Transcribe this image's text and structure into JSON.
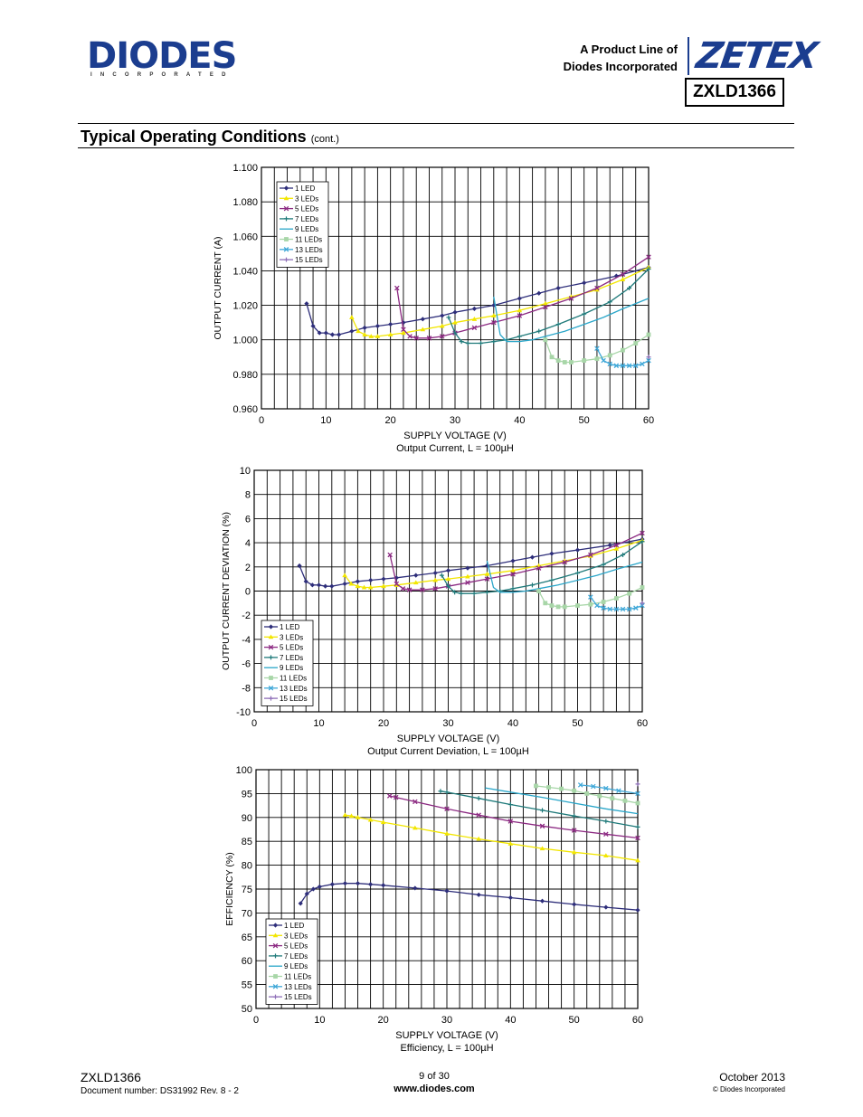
{
  "header": {
    "logo_text": "DIODES",
    "logo_subtext": "INCORPORATED",
    "product_line_1": "A Product Line of",
    "product_line_2": "Diodes Incorporated",
    "brand": "ZETEX",
    "part_number": "ZXLD1366",
    "brand_color": "#1b3d8f"
  },
  "section": {
    "title": "Typical Operating Conditions",
    "suffix": "(cont.)"
  },
  "series_colors": [
    "#2e2e7a",
    "#f2e600",
    "#8c2a82",
    "#1f7a7a",
    "#2aa6c9",
    "#a8d6a8",
    "#40a8d8",
    "#8e6fb8"
  ],
  "chart_data": [
    {
      "type": "line",
      "ylabel": "OUTPUT CURRENT (A)",
      "xlabel": "SUPPLY VOLTAGE (V)",
      "caption": "Output Current, L = 100µH",
      "xlim": [
        0,
        60
      ],
      "ylim": [
        0.96,
        1.1
      ],
      "xticks": [
        "0",
        "10",
        "20",
        "30",
        "40",
        "50",
        "60"
      ],
      "yticks": [
        "0.960",
        "0.980",
        "1.000",
        "1.020",
        "1.040",
        "1.060",
        "1.080",
        "1.100"
      ],
      "grid": "vertical every 2 V, horizontal at labeled ticks",
      "legend_position": "top-left",
      "series": [
        {
          "name": "1 LED",
          "x": [
            7,
            8,
            9,
            10,
            11,
            12,
            14,
            16,
            18,
            20,
            22,
            25,
            28,
            30,
            33,
            36,
            40,
            43,
            46,
            50,
            55,
            60
          ],
          "y": [
            1.021,
            1.008,
            1.004,
            1.004,
            1.003,
            1.003,
            1.005,
            1.007,
            1.008,
            1.009,
            1.01,
            1.012,
            1.014,
            1.016,
            1.018,
            1.02,
            1.024,
            1.027,
            1.03,
            1.033,
            1.037,
            1.042
          ]
        },
        {
          "name": "3 LEDs",
          "x": [
            14,
            15,
            16,
            17,
            18,
            20,
            22,
            25,
            28,
            30,
            33,
            36,
            40,
            44,
            48,
            52,
            56,
            60
          ],
          "y": [
            1.013,
            1.005,
            1.003,
            1.002,
            1.002,
            1.003,
            1.004,
            1.006,
            1.008,
            1.01,
            1.012,
            1.014,
            1.017,
            1.021,
            1.025,
            1.029,
            1.035,
            1.042
          ]
        },
        {
          "name": "5 LEDs",
          "x": [
            21,
            22,
            23,
            24,
            26,
            28,
            30,
            33,
            36,
            40,
            44,
            48,
            52,
            56,
            60
          ],
          "y": [
            1.03,
            1.006,
            1.002,
            1.001,
            1.001,
            1.002,
            1.004,
            1.007,
            1.01,
            1.014,
            1.019,
            1.024,
            1.03,
            1.038,
            1.048
          ]
        },
        {
          "name": "7 LEDs",
          "x": [
            29,
            30,
            31,
            32,
            34,
            36,
            38,
            40,
            43,
            46,
            50,
            54,
            57,
            60
          ],
          "y": [
            1.013,
            1.004,
            0.999,
            0.998,
            0.998,
            0.999,
            1.0,
            1.002,
            1.005,
            1.009,
            1.015,
            1.022,
            1.03,
            1.041
          ]
        },
        {
          "name": "9 LEDs",
          "x": [
            36,
            37,
            38,
            39,
            40,
            42,
            44,
            47,
            50,
            53,
            56,
            60
          ],
          "y": [
            1.025,
            1.003,
            0.999,
            0.999,
            0.999,
            1.0,
            1.002,
            1.005,
            1.009,
            1.013,
            1.018,
            1.024
          ]
        },
        {
          "name": "11 LEDs",
          "x": [
            44,
            45,
            46,
            47,
            48,
            50,
            52,
            54,
            56,
            58,
            60
          ],
          "y": [
            1.0,
            0.99,
            0.988,
            0.987,
            0.987,
            0.988,
            0.989,
            0.991,
            0.994,
            0.998,
            1.003
          ]
        },
        {
          "name": "13 LEDs",
          "x": [
            52,
            53,
            54,
            55,
            56,
            57,
            58,
            59,
            60
          ],
          "y": [
            0.995,
            0.988,
            0.986,
            0.985,
            0.985,
            0.985,
            0.985,
            0.986,
            0.988
          ]
        },
        {
          "name": "15 LEDs",
          "x": [
            60
          ],
          "y": [
            0.99
          ]
        }
      ]
    },
    {
      "type": "line",
      "ylabel": "OUTPUT CURRENT DEVIATION (%)",
      "xlabel": "SUPPLY VOLTAGE (V)",
      "caption": "Output Current Deviation, L = 100µH",
      "xlim": [
        0,
        60
      ],
      "ylim": [
        -10,
        10
      ],
      "xticks": [
        "0",
        "10",
        "20",
        "30",
        "40",
        "50",
        "60"
      ],
      "yticks": [
        "-10",
        "-8",
        "-6",
        "-4",
        "-2",
        "0",
        "2",
        "4",
        "6",
        "8",
        "10"
      ],
      "grid": "vertical every 2 V, horizontal at labeled ticks",
      "legend_position": "bottom-left",
      "series": [
        {
          "name": "1 LED",
          "x": [
            7,
            8,
            9,
            10,
            11,
            12,
            14,
            16,
            18,
            20,
            22,
            25,
            28,
            30,
            33,
            36,
            40,
            43,
            46,
            50,
            55,
            60
          ],
          "y": [
            2.1,
            0.8,
            0.5,
            0.5,
            0.4,
            0.4,
            0.6,
            0.8,
            0.9,
            1.0,
            1.1,
            1.3,
            1.5,
            1.7,
            1.9,
            2.1,
            2.5,
            2.8,
            3.1,
            3.4,
            3.8,
            4.3
          ]
        },
        {
          "name": "3 LEDs",
          "x": [
            14,
            15,
            16,
            17,
            18,
            20,
            22,
            25,
            28,
            30,
            33,
            36,
            40,
            44,
            48,
            52,
            56,
            60
          ],
          "y": [
            1.3,
            0.6,
            0.4,
            0.3,
            0.3,
            0.4,
            0.5,
            0.7,
            0.9,
            1.0,
            1.2,
            1.4,
            1.7,
            2.1,
            2.5,
            2.9,
            3.5,
            4.2
          ]
        },
        {
          "name": "5 LEDs",
          "x": [
            21,
            22,
            23,
            24,
            26,
            28,
            30,
            33,
            36,
            40,
            44,
            48,
            52,
            56,
            60
          ],
          "y": [
            3.0,
            0.6,
            0.2,
            0.1,
            0.1,
            0.2,
            0.4,
            0.7,
            1.0,
            1.4,
            1.9,
            2.4,
            3.0,
            3.8,
            4.8
          ]
        },
        {
          "name": "7 LEDs",
          "x": [
            29,
            30,
            31,
            32,
            34,
            36,
            38,
            40,
            43,
            46,
            50,
            54,
            57,
            60
          ],
          "y": [
            1.3,
            0.4,
            -0.1,
            -0.2,
            -0.2,
            -0.1,
            0.0,
            0.2,
            0.5,
            0.9,
            1.5,
            2.2,
            3.0,
            4.1
          ]
        },
        {
          "name": "9 LEDs",
          "x": [
            36,
            37,
            38,
            39,
            40,
            42,
            44,
            47,
            50,
            53,
            56,
            60
          ],
          "y": [
            2.5,
            0.3,
            -0.1,
            -0.1,
            -0.1,
            0.0,
            0.2,
            0.5,
            0.9,
            1.3,
            1.8,
            2.4
          ]
        },
        {
          "name": "11 LEDs",
          "x": [
            44,
            45,
            46,
            47,
            48,
            50,
            52,
            54,
            56,
            58,
            60
          ],
          "y": [
            0.0,
            -1.0,
            -1.2,
            -1.3,
            -1.3,
            -1.2,
            -1.1,
            -0.9,
            -0.6,
            -0.2,
            0.3
          ]
        },
        {
          "name": "13 LEDs",
          "x": [
            52,
            53,
            54,
            55,
            56,
            57,
            58,
            59,
            60
          ],
          "y": [
            -0.5,
            -1.2,
            -1.4,
            -1.5,
            -1.5,
            -1.5,
            -1.5,
            -1.4,
            -1.2
          ]
        },
        {
          "name": "15 LEDs",
          "x": [
            60
          ],
          "y": [
            -1.0
          ]
        }
      ]
    },
    {
      "type": "line",
      "ylabel": "EFFICIENCY (%)",
      "xlabel": "SUPPLY VOLTAGE (V)",
      "caption": "Efficiency, L = 100µH",
      "xlim": [
        0,
        60
      ],
      "ylim": [
        50,
        100
      ],
      "xticks": [
        "0",
        "10",
        "20",
        "30",
        "40",
        "50",
        "60"
      ],
      "yticks": [
        "50",
        "55",
        "60",
        "65",
        "70",
        "75",
        "80",
        "85",
        "90",
        "95",
        "100"
      ],
      "grid": "vertical every 2 V, horizontal at labeled ticks",
      "legend_position": "bottom-left",
      "series": [
        {
          "name": "1 LED",
          "x": [
            7,
            8,
            9,
            10,
            12,
            14,
            16,
            18,
            20,
            25,
            30,
            35,
            40,
            45,
            50,
            55,
            60
          ],
          "y": [
            72,
            74,
            75,
            75.5,
            76,
            76.2,
            76.2,
            76,
            75.8,
            75.2,
            74.6,
            73.8,
            73.2,
            72.5,
            71.8,
            71.2,
            70.6
          ]
        },
        {
          "name": "3 LEDs",
          "x": [
            14,
            15,
            16,
            18,
            20,
            25,
            30,
            35,
            40,
            45,
            50,
            55,
            60
          ],
          "y": [
            90.5,
            90.3,
            90,
            89.5,
            89,
            87.8,
            86.6,
            85.5,
            84.5,
            83.5,
            82.7,
            82,
            81
          ]
        },
        {
          "name": "5 LEDs",
          "x": [
            21,
            22,
            25,
            30,
            35,
            40,
            45,
            50,
            55,
            60
          ],
          "y": [
            94.5,
            94.2,
            93.3,
            91.8,
            90.5,
            89.2,
            88.2,
            87.3,
            86.5,
            85.7
          ]
        },
        {
          "name": "7 LEDs",
          "x": [
            29,
            30,
            35,
            40,
            45,
            50,
            55,
            60
          ],
          "y": [
            95.5,
            95.3,
            94,
            92.7,
            91.5,
            90.3,
            89.2,
            88
          ]
        },
        {
          "name": "9 LEDs",
          "x": [
            36,
            40,
            45,
            50,
            55,
            60
          ],
          "y": [
            96.2,
            95.3,
            94.2,
            93,
            91.8,
            90.8
          ]
        },
        {
          "name": "11 LEDs",
          "x": [
            44,
            46,
            48,
            50,
            52,
            54,
            56,
            58,
            60
          ],
          "y": [
            96.6,
            96.3,
            96,
            95.6,
            95,
            94.5,
            94,
            93.5,
            93
          ]
        },
        {
          "name": "13 LEDs",
          "x": [
            51,
            53,
            55,
            57,
            60
          ],
          "y": [
            96.8,
            96.5,
            96.1,
            95.6,
            95
          ]
        },
        {
          "name": "15 LEDs",
          "x": [
            60
          ],
          "y": [
            97
          ]
        }
      ]
    }
  ],
  "footer": {
    "part": "ZXLD1366",
    "doc": "Document number: DS31992 Rev. 8 - 2",
    "page": "9 of 30",
    "url": "www.diodes.com",
    "date": "October 2013",
    "copyright": "© Diodes Incorporated"
  }
}
